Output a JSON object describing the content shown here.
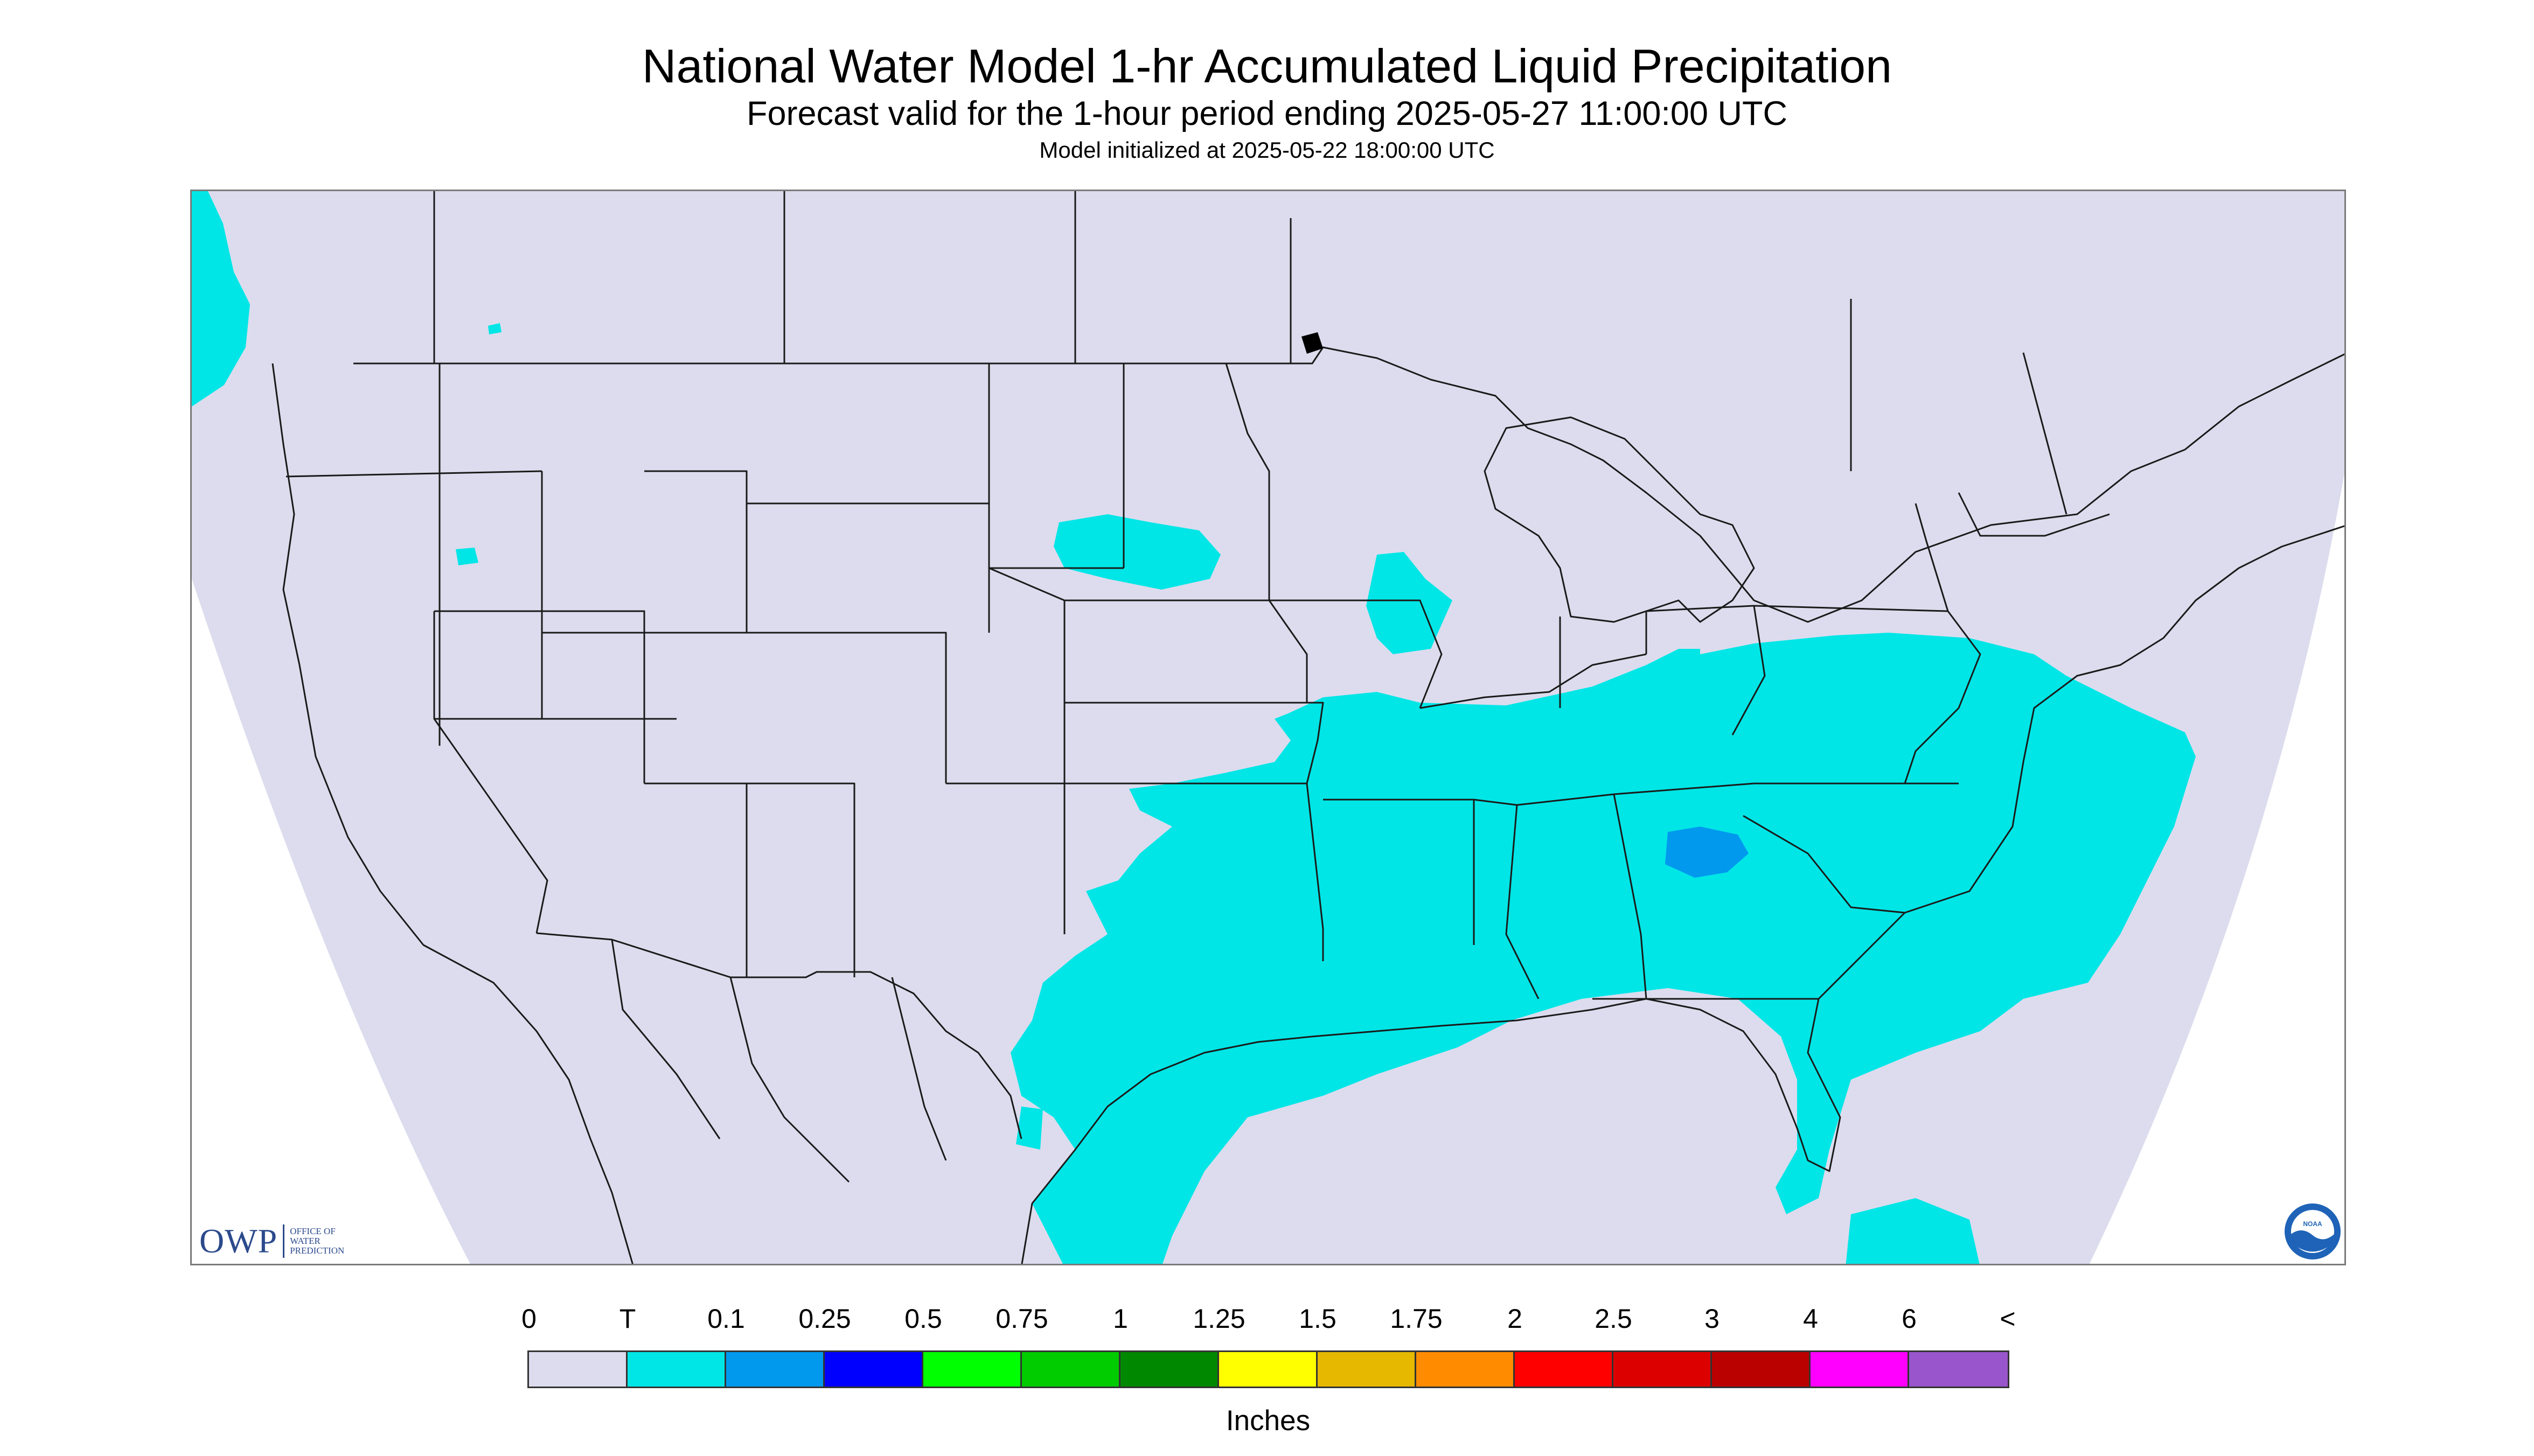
{
  "title": "National Water Model 1-hr Accumulated Liquid Precipitation",
  "subtitle": "Forecast valid for the 1-hour period ending 2025-05-27 11:00:00 UTC",
  "init_line": "Model initialized at 2025-05-22 18:00:00 UTC",
  "colors": {
    "no_precip": "#dcdcee",
    "trace": "#00e6e6",
    "outside_domain": "#ffffff",
    "boundary": "#1a1a1a"
  },
  "map": {
    "projection": "Lambert Conformal Conic, CONUS domain",
    "precip_regions": [
      "Pacific Northwest coast / Washington",
      "Eastern Nebraska / South Dakota",
      "Northeast Iowa / Wisconsin",
      "Ohio Valley, Tennessee Valley, Southeast and Mid-Atlantic",
      "Texas, Oklahoma, Arkansas, Louisiana, Gulf Coast",
      "Florida peninsula and western Atlantic",
      "Northeast Mexico"
    ],
    "heavier_region": "Southern Appalachians (0.1 - 0.25 in)"
  },
  "logos": {
    "owp_mark": "OWP",
    "owp_text": [
      "OFFICE OF",
      "WATER",
      "PREDICTION"
    ],
    "noaa_text": "NOAA"
  },
  "legend": {
    "labels": [
      "0",
      "T",
      "0.1",
      "0.25",
      "0.5",
      "0.75",
      "1",
      "1.25",
      "1.5",
      "1.75",
      "2",
      "2.5",
      "3",
      "4",
      "6",
      "<"
    ],
    "colors": [
      "#dcdcee",
      "#00e6e6",
      "#0099ee",
      "#0000ff",
      "#00ff00",
      "#00cc00",
      "#008800",
      "#ffff00",
      "#e6b800",
      "#ff8c00",
      "#ff0000",
      "#dd0000",
      "#bb0000",
      "#ff00ff",
      "#9955cc"
    ],
    "units": "Inches"
  }
}
